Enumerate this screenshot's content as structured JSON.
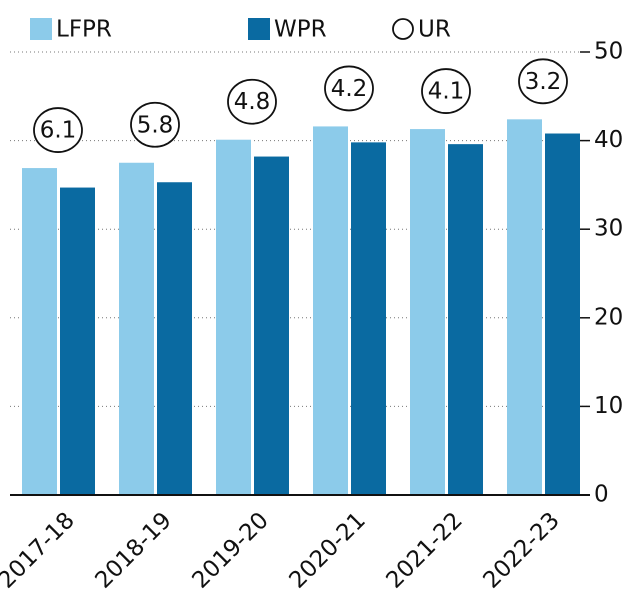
{
  "chart_data": {
    "type": "bar",
    "categories": [
      "2017-18",
      "2018-19",
      "2019-20",
      "2020-21",
      "2021-22",
      "2022-23"
    ],
    "series": [
      {
        "name": "LFPR",
        "color": "#8ccbea",
        "values": [
          36.9,
          37.5,
          40.1,
          41.6,
          41.3,
          42.4
        ]
      },
      {
        "name": "WPR",
        "color": "#0a6aa1",
        "values": [
          34.7,
          35.3,
          38.2,
          39.8,
          39.6,
          40.8
        ]
      },
      {
        "name": "UR",
        "color": "#000000",
        "values": [
          6.1,
          5.8,
          4.8,
          4.2,
          4.1,
          3.2
        ]
      }
    ],
    "ylim": [
      0,
      50
    ],
    "yticks": [
      0,
      10,
      20,
      30,
      40,
      50
    ],
    "grid": true
  }
}
